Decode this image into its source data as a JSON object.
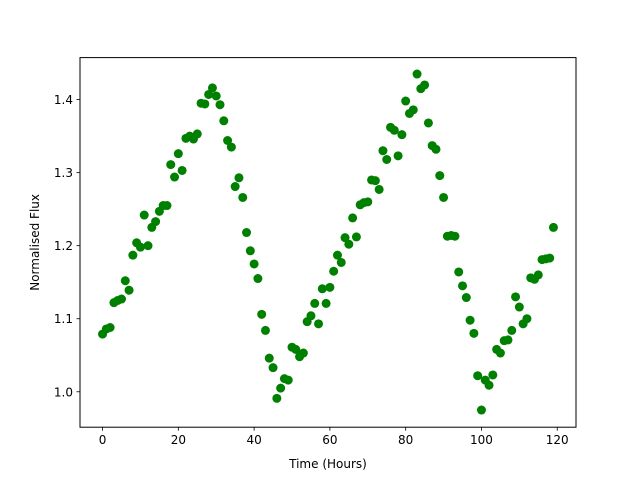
{
  "chart_data": {
    "type": "scatter",
    "title": "",
    "xlabel": "Time (Hours)",
    "ylabel": "Normalised Flux",
    "xlim": [
      -5.95,
      124.95
    ],
    "ylim": [
      0.9515,
      1.4575
    ],
    "xticks": [
      0,
      20,
      40,
      60,
      80,
      100,
      120
    ],
    "yticks": [
      1.0,
      1.1,
      1.2,
      1.3,
      1.4
    ],
    "xtick_labels": [
      "0",
      "20",
      "40",
      "60",
      "80",
      "100",
      "120"
    ],
    "ytick_labels": [
      "1.0",
      "1.1",
      "1.2",
      "1.3",
      "1.4"
    ],
    "grid": false,
    "marker_color": "#008000",
    "series": [
      {
        "x": [
          0,
          1,
          2,
          3,
          4,
          5,
          6,
          7,
          8,
          9,
          10,
          11,
          12,
          13,
          14,
          15,
          16,
          17,
          18,
          19,
          20,
          21,
          22,
          23,
          24,
          25,
          26,
          27,
          28,
          29,
          30,
          31,
          32,
          33,
          34,
          35,
          36,
          37,
          38,
          39,
          40,
          41,
          42,
          43,
          44,
          45,
          46,
          47,
          48,
          49,
          50,
          51,
          52,
          53,
          54,
          55,
          56,
          57,
          58,
          59,
          60,
          61,
          62,
          63,
          64,
          65,
          66,
          67,
          68,
          69,
          70,
          71,
          72,
          73,
          74,
          75,
          76,
          77,
          78,
          79,
          80,
          81,
          82,
          83,
          84,
          85,
          86,
          87,
          88,
          89,
          90,
          91,
          92,
          93,
          94,
          95,
          96,
          97,
          98,
          99,
          100,
          101,
          102,
          103,
          104,
          105,
          106,
          107,
          108,
          109,
          110,
          111,
          112,
          113,
          114,
          115,
          116,
          117,
          118,
          119
        ],
        "y": [
          1.079,
          1.086,
          1.088,
          1.122,
          1.125,
          1.127,
          1.152,
          1.139,
          1.187,
          1.204,
          1.198,
          1.242,
          1.2,
          1.225,
          1.233,
          1.247,
          1.255,
          1.255,
          1.311,
          1.294,
          1.326,
          1.303,
          1.347,
          1.35,
          1.346,
          1.353,
          1.395,
          1.394,
          1.407,
          1.416,
          1.405,
          1.393,
          1.371,
          1.344,
          1.335,
          1.281,
          1.293,
          1.266,
          1.218,
          1.193,
          1.175,
          1.155,
          1.106,
          1.084,
          1.046,
          1.033,
          0.991,
          1.005,
          1.018,
          1.016,
          1.061,
          1.058,
          1.048,
          1.053,
          1.096,
          1.104,
          1.121,
          1.093,
          1.141,
          1.121,
          1.143,
          1.165,
          1.187,
          1.177,
          1.211,
          1.202,
          1.238,
          1.212,
          1.256,
          1.259,
          1.26,
          1.29,
          1.289,
          1.277,
          1.33,
          1.318,
          1.362,
          1.358,
          1.323,
          1.352,
          1.398,
          1.381,
          1.386,
          1.435,
          1.415,
          1.42,
          1.368,
          1.337,
          1.332,
          1.296,
          1.266,
          1.213,
          1.214,
          1.213,
          1.164,
          1.145,
          1.129,
          1.098,
          1.08,
          1.022,
          0.975,
          1.016,
          1.009,
          1.023,
          1.058,
          1.053,
          1.07,
          1.071,
          1.084,
          1.13,
          1.116,
          1.093,
          1.1,
          1.156,
          1.154,
          1.16,
          1.181,
          1.182,
          1.183,
          1.225
        ]
      }
    ]
  }
}
